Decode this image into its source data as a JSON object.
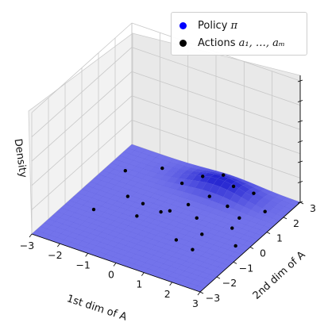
{
  "chart_data": {
    "type": "surface3d",
    "xlabel": "1st dim of A",
    "ylabel": "2nd dim of A",
    "zlabel": "Density",
    "xlim": [
      -3,
      3
    ],
    "ylim": [
      -3,
      3
    ],
    "x_ticks": [
      "−3",
      "−2",
      "−1",
      "0",
      "1",
      "2",
      "3"
    ],
    "y_ticks": [
      "−3",
      "−2",
      "−1",
      "0",
      "1",
      "2",
      "3"
    ],
    "z_ticks_labeled": false,
    "grid": true,
    "legend_placement": "top-right",
    "series": [
      {
        "name": "Policy π",
        "kind": "surface",
        "color": "#0000ff",
        "description_values": {
          "mean": [
            0.6,
            2.3
          ],
          "std": [
            0.9,
            0.45
          ]
        }
      },
      {
        "name": "Actions a1, …, am",
        "kind": "scatter",
        "color": "#000000",
        "points": [
          [
            -2.1,
            -0.8
          ],
          [
            -1.6,
            0.4
          ],
          [
            -1.0,
            0.3
          ],
          [
            -0.3,
            0.2
          ],
          [
            -0.1,
            0.4
          ],
          [
            0.2,
            1.0
          ],
          [
            0.6,
            1.6
          ],
          [
            1.1,
            2.2
          ],
          [
            1.3,
            1.5
          ],
          [
            1.7,
            2.4
          ],
          [
            -2.4,
            1.6
          ],
          [
            -0.8,
            -0.4
          ],
          [
            0.9,
            -0.9
          ],
          [
            2.0,
            0.6
          ],
          [
            0.5,
            2.6
          ],
          [
            -1.5,
            2.3
          ],
          [
            2.4,
            1.9
          ],
          [
            1.4,
            -0.2
          ],
          [
            0.0,
            2.2
          ],
          [
            1.9,
            1.2
          ],
          [
            -0.5,
            1.8
          ],
          [
            0.8,
            0.5
          ],
          [
            1.6,
            -1.1
          ],
          [
            2.6,
            -0.2
          ]
        ]
      }
    ],
    "legend": {
      "policy_prefix": "Policy ",
      "policy_symbol": "π",
      "actions_prefix": "Actions ",
      "actions_symbol": "a₁, …, aₘ"
    }
  }
}
